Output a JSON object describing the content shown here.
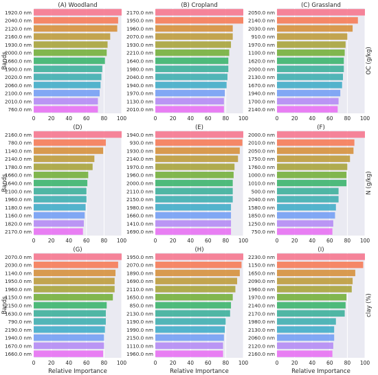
{
  "figure": {
    "xlabel": "Relative Importance",
    "ylabel": "Bands",
    "row_labels": [
      "OC (g/kg)",
      "N (g/kg)",
      "clay (%)"
    ]
  },
  "chart_data": [
    {
      "type": "bar",
      "orientation": "horizontal",
      "title": "(A) Woodland",
      "xlim": [
        0,
        100
      ],
      "xticks": [
        0,
        20,
        40,
        60,
        80,
        100
      ],
      "categories": [
        "1920.0 nm",
        "2040.0 nm",
        "2120.0 nm",
        "2160.0 nm",
        "1930.0 nm",
        "2000.0 nm",
        "1660.0 nm",
        "1900.0 nm",
        "2020.0 nm",
        "2060.0 nm",
        "2100.0 nm",
        "2010.0 nm",
        "760.0 nm"
      ],
      "values": [
        100,
        96,
        95,
        87,
        84,
        83,
        81,
        78,
        77,
        76,
        75,
        73,
        73
      ]
    },
    {
      "type": "bar",
      "orientation": "horizontal",
      "title": "(B) Cropland",
      "xlim": [
        0,
        100
      ],
      "xticks": [
        0,
        20,
        40,
        60,
        80,
        100
      ],
      "categories": [
        "2170.0 nm",
        "1950.0 nm",
        "1960.0 nm",
        "2070.0 nm",
        "1930.0 nm",
        "2210.0 nm",
        "1640.0 nm",
        "1980.0 nm",
        "2040.0 nm",
        "1940.0 nm",
        "1970.0 nm",
        "1130.0 nm",
        "2010.0 nm"
      ],
      "values": [
        100,
        100,
        88,
        88,
        86,
        84,
        83,
        83,
        82,
        81,
        79,
        78,
        78
      ]
    },
    {
      "type": "bar",
      "orientation": "horizontal",
      "title": "(C) Grassland",
      "xlim": [
        0,
        100
      ],
      "xticks": [
        0,
        20,
        40,
        60,
        80,
        100
      ],
      "categories": [
        "2050.0 nm",
        "2140.0 nm",
        "2030.0 nm",
        "910.0 nm",
        "1970.0 nm",
        "1100.0 nm",
        "1620.0 nm",
        "2000.0 nm",
        "2130.0 nm",
        "1670.0 nm",
        "1940.0 nm",
        "1700.0 nm",
        "2140.0 nm"
      ],
      "values": [
        100,
        92,
        86,
        80,
        78,
        77,
        76,
        76,
        75,
        74,
        72,
        70,
        69
      ]
    },
    {
      "type": "bar",
      "orientation": "horizontal",
      "title": "(D)",
      "xlim": [
        0,
        100
      ],
      "xticks": [
        0,
        20,
        40,
        60,
        80,
        100
      ],
      "categories": [
        "2160.0 nm",
        "780.0 nm",
        "1140.0 nm",
        "2140.0 nm",
        "1780.0 nm",
        "1660.0 nm",
        "1640.0 nm",
        "2100.0 nm",
        "1960.0 nm",
        "1180.0 nm",
        "1160.0 nm",
        "1820.0 nm",
        "2170.0 nm"
      ],
      "values": [
        100,
        82,
        79,
        69,
        67,
        62,
        61,
        60,
        60,
        59,
        58,
        57,
        56
      ]
    },
    {
      "type": "bar",
      "orientation": "horizontal",
      "title": "(E)",
      "xlim": [
        0,
        100
      ],
      "xticks": [
        0,
        20,
        40,
        60,
        80,
        100
      ],
      "categories": [
        "1940.0 nm",
        "930.0 nm",
        "1930.0 nm",
        "2140.0 nm",
        "1970.0 nm",
        "1960.0 nm",
        "2000.0 nm",
        "2110.0 nm",
        "2150.0 nm",
        "1980.0 nm",
        "1660.0 nm",
        "1410.0 nm",
        "1690.0 nm"
      ],
      "values": [
        100,
        99,
        96,
        94,
        90,
        89,
        88,
        88,
        88,
        86,
        86,
        86,
        86
      ]
    },
    {
      "type": "bar",
      "orientation": "horizontal",
      "title": "(F)",
      "xlim": [
        0,
        100
      ],
      "xticks": [
        0,
        20,
        40,
        60,
        80,
        100
      ],
      "categories": [
        "2000.0 nm",
        "2010.0 nm",
        "2050.0 nm",
        "1750.0 nm",
        "1760.0 nm",
        "1000.0 nm",
        "1010.0 nm",
        "500.0 nm",
        "2040.0 nm",
        "1580.0 nm",
        "1850.0 nm",
        "1250.0 nm",
        "750.0 nm"
      ],
      "values": [
        100,
        88,
        87,
        83,
        80,
        79,
        79,
        70,
        70,
        67,
        66,
        64,
        63
      ]
    },
    {
      "type": "bar",
      "orientation": "horizontal",
      "title": "(G)",
      "xlim": [
        0,
        100
      ],
      "xticks": [
        0,
        20,
        40,
        60,
        80,
        100
      ],
      "categories": [
        "2070.0 nm",
        "2030.0 nm",
        "1140.0 nm",
        "1950.0 nm",
        "1960.0 nm",
        "1150.0 nm",
        "2150.0 nm",
        "1630.0 nm",
        "790.0 nm",
        "2190.0 nm",
        "1940.0 nm",
        "1670.0 nm",
        "1660.0 nm"
      ],
      "values": [
        100,
        96,
        93,
        92,
        92,
        90,
        83,
        82,
        82,
        81,
        80,
        80,
        79
      ]
    },
    {
      "type": "bar",
      "orientation": "horizontal",
      "title": "(H)",
      "xlim": [
        0,
        100
      ],
      "xticks": [
        0,
        20,
        40,
        60,
        80,
        100
      ],
      "categories": [
        "1950.0 nm",
        "2070.0 nm",
        "1890.0 nm",
        "1690.0 nm",
        "2110.0 nm",
        "1650.0 nm",
        "850.0 nm",
        "2130.0 nm",
        "1190.0 nm",
        "1990.0 nm",
        "2150.0 nm",
        "1110.0 nm",
        "1960.0 nm"
      ],
      "values": [
        100,
        98,
        96,
        93,
        91,
        88,
        86,
        85,
        80,
        79,
        78,
        77,
        77
      ]
    },
    {
      "type": "bar",
      "orientation": "horizontal",
      "title": "(I)",
      "xlim": [
        0,
        100
      ],
      "xticks": [
        0,
        20,
        40,
        60,
        80,
        100
      ],
      "categories": [
        "2230.0 nm",
        "1150.0 nm",
        "1650.0 nm",
        "2090.0 nm",
        "1960.0 nm",
        "1970.0 nm",
        "2140.0 nm",
        "2170.0 nm",
        "1980.0 nm",
        "2130.0 nm",
        "2060.0 nm",
        "2120.0 nm",
        "2160.0 nm"
      ],
      "values": [
        100,
        98,
        89,
        86,
        85,
        79,
        78,
        77,
        67,
        65,
        65,
        64,
        63
      ]
    }
  ],
  "palette": [
    "#f77189",
    "#f7754f",
    "#d58c32",
    "#bb9832",
    "#a4a031",
    "#6fad31",
    "#32b166",
    "#34ad96",
    "#36abad",
    "#38a9c5",
    "#6e9bf4",
    "#b186f5",
    "#e76bf3"
  ],
  "style": {
    "panel_bg": "#eaeaf2",
    "grid": "#ffffff",
    "text": "#262626"
  }
}
